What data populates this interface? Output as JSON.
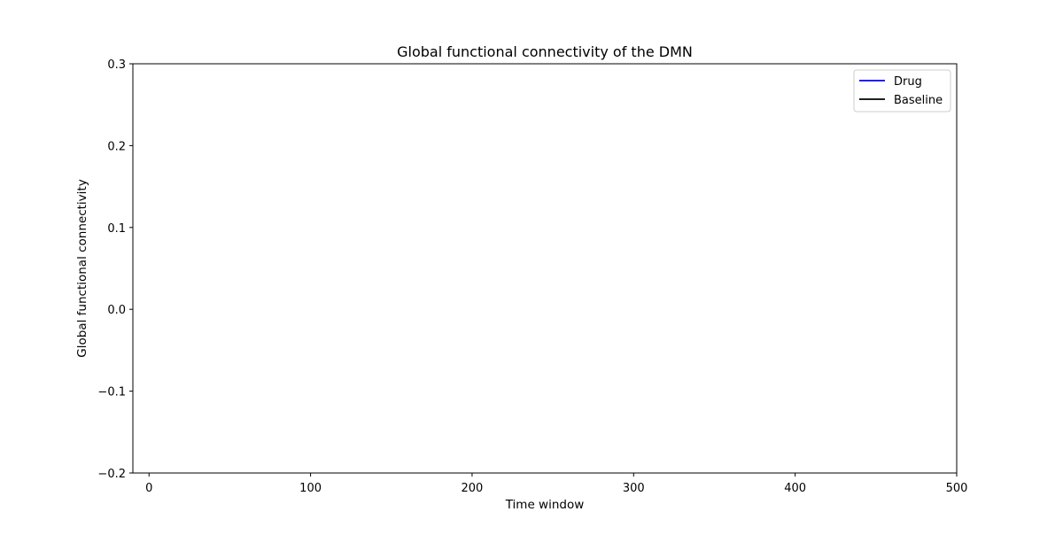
{
  "chart_data": {
    "type": "line",
    "title": "Global functional connectivity of the DMN",
    "xlabel": "Time window",
    "ylabel": "Global functional connectivity",
    "xlim": [
      -10,
      500
    ],
    "ylim": [
      -0.2,
      0.3
    ],
    "x_ticks": [
      0,
      100,
      200,
      300,
      400,
      500
    ],
    "x_tick_labels": [
      "0",
      "100",
      "200",
      "300",
      "400",
      "500"
    ],
    "y_ticks": [
      -0.2,
      -0.1,
      0.0,
      0.1,
      0.2,
      0.3
    ],
    "y_tick_labels": [
      "−0.2",
      "−0.1",
      "0.0",
      "0.1",
      "0.2",
      "0.3"
    ],
    "grid": false,
    "legend_position": "top-right",
    "series": [
      {
        "name": "Drug",
        "color": "#0000ff",
        "x": [],
        "values": []
      },
      {
        "name": "Baseline",
        "color": "#000000",
        "x": [],
        "values": []
      }
    ]
  }
}
